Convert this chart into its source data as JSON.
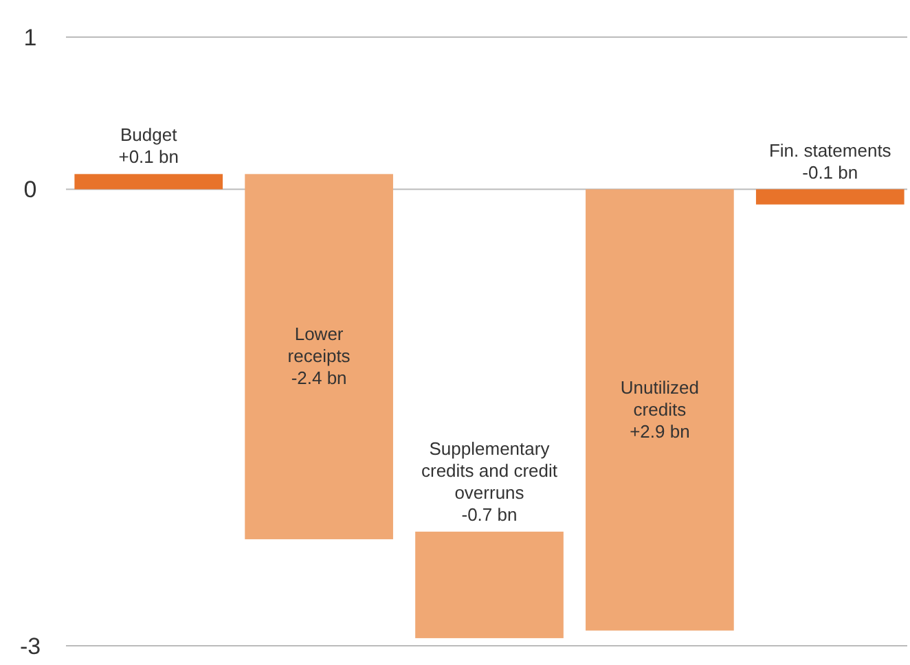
{
  "chart_data": {
    "type": "bar",
    "categories": [
      "Budget",
      "Lower receipts",
      "Supplementary credits and credit overruns",
      "Unutilized credits",
      "Fin. statements"
    ],
    "values": [
      0.1,
      -2.4,
      -0.7,
      2.9,
      -0.1
    ],
    "base": [
      0,
      0.1,
      -2.25,
      -2.9,
      0
    ],
    "colors": [
      "#e8732a",
      "#f0a874",
      "#f0a874",
      "#f0a874",
      "#e8732a"
    ],
    "value_labels": [
      "+0.1 bn",
      "-2.4 bn",
      "-0.7 bn",
      "+2.9 bn",
      "-0.1 bn"
    ],
    "ylim": [
      -3,
      1
    ],
    "yticks": [
      1,
      0,
      -3
    ],
    "grid": "y",
    "tick_labels": "y"
  }
}
